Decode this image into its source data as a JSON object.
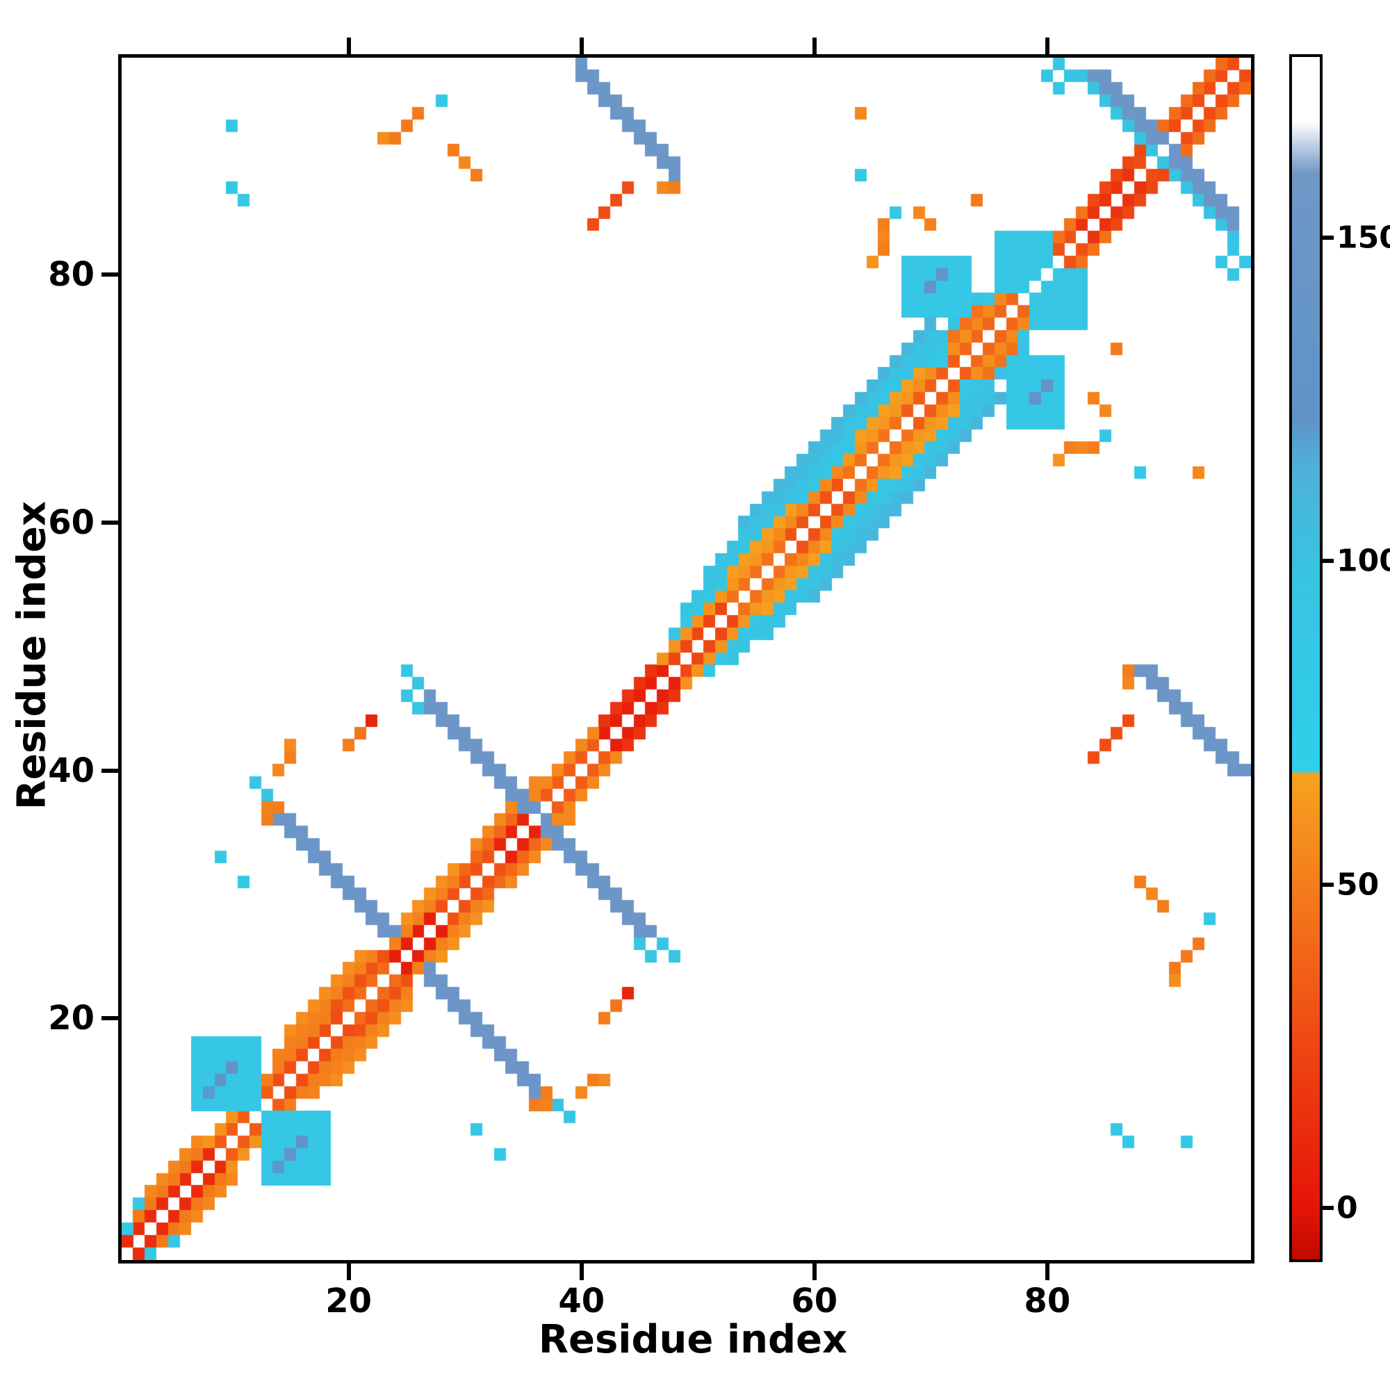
{
  "figure": {
    "background": "#ffffff"
  },
  "chart_data": {
    "type": "heatmap",
    "title": "",
    "xlabel": "Residue index",
    "ylabel": "Residue index",
    "n": 97,
    "axis_range": [
      1,
      97
    ],
    "x_ticks": [
      20,
      40,
      60,
      80
    ],
    "y_ticks": [
      20,
      40,
      60,
      80
    ],
    "grid": false,
    "symmetric": true,
    "background_cell": "#ffffff",
    "colorbar": {
      "ticks": [
        0,
        50,
        100,
        150
      ],
      "vmin": -8,
      "vmax": 178,
      "position": "right"
    },
    "colormap_stops": [
      [
        -8,
        "#c00b00"
      ],
      [
        0,
        "#e51408"
      ],
      [
        25,
        "#ef4713"
      ],
      [
        50,
        "#f47d1c"
      ],
      [
        67,
        "#f6a21f"
      ],
      [
        67.6,
        "#2ed0ea"
      ],
      [
        100,
        "#39c2e2"
      ],
      [
        115,
        "#4fb0d8"
      ],
      [
        122,
        "#5f93c8"
      ],
      [
        160,
        "#7097c6"
      ],
      [
        168,
        "#ffffff"
      ],
      [
        178,
        "#ffffff"
      ]
    ],
    "features": [
      {
        "t": "diag",
        "a": 1,
        "b": 9,
        "off": 1,
        "v": 12
      },
      {
        "t": "diag",
        "a": 9,
        "b": 14,
        "off": 1,
        "v": 35
      },
      {
        "t": "diag",
        "a": 14,
        "b": 20,
        "off": 1,
        "v": 28
      },
      {
        "t": "diag",
        "a": 20,
        "b": 24,
        "off": 1,
        "v": 42
      },
      {
        "t": "diag",
        "a": 24,
        "b": 28,
        "off": 1,
        "v": 5
      },
      {
        "t": "diag",
        "a": 28,
        "b": 33,
        "off": 1,
        "v": 30
      },
      {
        "t": "diag",
        "a": 33,
        "b": 37,
        "off": 1,
        "v": 8
      },
      {
        "t": "diag",
        "a": 37,
        "b": 42,
        "off": 1,
        "v": 35
      },
      {
        "t": "diag",
        "a": 42,
        "b": 48,
        "off": 1,
        "v": 6
      },
      {
        "t": "diag",
        "a": 48,
        "b": 53,
        "off": 1,
        "v": 25
      },
      {
        "t": "diag",
        "a": 53,
        "b": 58,
        "off": 1,
        "v": 45
      },
      {
        "t": "diag",
        "a": 58,
        "b": 63,
        "off": 1,
        "v": 30
      },
      {
        "t": "diag",
        "a": 63,
        "b": 68,
        "off": 1,
        "v": 45
      },
      {
        "t": "diag",
        "a": 68,
        "b": 73,
        "off": 1,
        "v": 35
      },
      {
        "t": "diag",
        "a": 73,
        "b": 78,
        "off": 1,
        "v": 40
      },
      {
        "t": "diag",
        "a": 78,
        "b": 83,
        "off": 1,
        "v": 30
      },
      {
        "t": "diag",
        "a": 83,
        "b": 88,
        "off": 1,
        "v": 15
      },
      {
        "t": "diag",
        "a": 88,
        "b": 96,
        "off": 1,
        "v": 28
      },
      {
        "t": "diag",
        "a": 1,
        "b": 8,
        "off": 2,
        "v": 48
      },
      {
        "t": "diag",
        "a": 8,
        "b": 13,
        "off": 2,
        "v": 60
      },
      {
        "t": "diag",
        "a": 13,
        "b": 19,
        "off": 2,
        "v": 50
      },
      {
        "t": "diag",
        "a": 19,
        "b": 24,
        "off": 2,
        "v": 30
      },
      {
        "t": "diag",
        "a": 24,
        "b": 30,
        "off": 2,
        "v": 52
      },
      {
        "t": "diag",
        "a": 30,
        "b": 36,
        "off": 2,
        "v": 40
      },
      {
        "t": "diag",
        "a": 36,
        "b": 42,
        "off": 2,
        "v": 55
      },
      {
        "t": "diag",
        "a": 42,
        "b": 47,
        "off": 2,
        "v": 15
      },
      {
        "t": "diag",
        "a": 47,
        "b": 52,
        "off": 2,
        "v": 60
      },
      {
        "t": "diag",
        "a": 52,
        "b": 57,
        "off": 2,
        "v": 62
      },
      {
        "t": "diag",
        "a": 57,
        "b": 63,
        "off": 2,
        "v": 55
      },
      {
        "t": "diag",
        "a": 63,
        "b": 69,
        "off": 2,
        "v": 62
      },
      {
        "t": "diag",
        "a": 69,
        "b": 74,
        "off": 2,
        "v": 58
      },
      {
        "t": "diag",
        "a": 74,
        "b": 79,
        "off": 2,
        "v": 55
      },
      {
        "t": "diag",
        "a": 79,
        "b": 84,
        "off": 2,
        "v": 45
      },
      {
        "t": "diag",
        "a": 84,
        "b": 89,
        "off": 2,
        "v": 25
      },
      {
        "t": "diag",
        "a": 89,
        "b": 95,
        "off": 2,
        "v": 42
      },
      {
        "t": "diag",
        "a": 3,
        "b": 7,
        "off": 3,
        "v": 55
      },
      {
        "t": "diag",
        "a": 14,
        "b": 22,
        "off": 3,
        "v": 52
      },
      {
        "t": "diag",
        "a": 24,
        "b": 29,
        "off": 3,
        "v": 60
      },
      {
        "t": "diag",
        "a": 31,
        "b": 36,
        "off": 3,
        "v": 55
      },
      {
        "t": "diag",
        "a": 48,
        "b": 53,
        "off": 3,
        "v": 90
      },
      {
        "t": "diag",
        "a": 53,
        "b": 59,
        "off": 3,
        "v": 65
      },
      {
        "t": "diag",
        "a": 59,
        "b": 64,
        "off": 3,
        "v": 90
      },
      {
        "t": "diag",
        "a": 64,
        "b": 70,
        "off": 3,
        "v": 65
      },
      {
        "t": "diag",
        "a": 70,
        "b": 75,
        "off": 3,
        "v": 92
      },
      {
        "t": "diag",
        "a": 15,
        "b": 21,
        "off": 4,
        "v": 58
      },
      {
        "t": "diag",
        "a": 49,
        "b": 56,
        "off": 4,
        "v": 95
      },
      {
        "t": "diag",
        "a": 56,
        "b": 62,
        "off": 4,
        "v": 100
      },
      {
        "t": "diag",
        "a": 62,
        "b": 68,
        "off": 4,
        "v": 96
      },
      {
        "t": "diag",
        "a": 68,
        "b": 74,
        "off": 4,
        "v": 100
      },
      {
        "t": "diag",
        "a": 51,
        "b": 57,
        "off": 5,
        "v": 100
      },
      {
        "t": "diag",
        "a": 57,
        "b": 63,
        "off": 5,
        "v": 105
      },
      {
        "t": "diag",
        "a": 63,
        "b": 70,
        "off": 5,
        "v": 100
      },
      {
        "t": "diag",
        "a": 54,
        "b": 62,
        "off": 6,
        "v": 108
      },
      {
        "t": "diag",
        "a": 62,
        "b": 70,
        "off": 6,
        "v": 110
      },
      {
        "t": "block",
        "x0": 7,
        "x1": 12,
        "y0": 13,
        "y1": 18,
        "v": 88
      },
      {
        "t": "block",
        "x0": 68,
        "x1": 73,
        "y0": 77,
        "y1": 81,
        "v": 88
      },
      {
        "t": "block",
        "x0": 76,
        "x1": 80,
        "y0": 79,
        "y1": 83,
        "v": 90
      },
      {
        "t": "anti",
        "i": 13,
        "j": 38,
        "len": 11,
        "v": 98
      },
      {
        "t": "anti",
        "i": 26,
        "j": 47,
        "len": 9,
        "v": 96
      },
      {
        "t": "anti",
        "i": 83,
        "j": 96,
        "len": 6,
        "v": 98
      },
      {
        "t": "anti",
        "i": 41,
        "j": 95,
        "len": 6,
        "v": 98
      },
      {
        "t": "anti",
        "i": 14,
        "j": 37,
        "len": 10,
        "v": 150
      },
      {
        "t": "anti",
        "i": 14,
        "j": 36,
        "len": 9,
        "v": 148
      },
      {
        "t": "anti",
        "i": 27,
        "j": 46,
        "len": 9,
        "v": 152
      },
      {
        "t": "anti",
        "i": 27,
        "j": 45,
        "len": 8,
        "v": 148
      },
      {
        "t": "anti",
        "i": 84,
        "j": 96,
        "len": 6,
        "v": 152
      },
      {
        "t": "anti",
        "i": 85,
        "j": 96,
        "len": 5,
        "v": 150
      },
      {
        "t": "anti",
        "i": 40,
        "j": 97,
        "len": 8,
        "v": 152
      },
      {
        "t": "anti",
        "i": 40,
        "j": 96,
        "len": 8,
        "v": 150
      },
      {
        "t": "dseg",
        "x": 24,
        "y": 91,
        "len": 3,
        "v": 48
      },
      {
        "t": "dseg",
        "x": 41,
        "y": 84,
        "len": 4,
        "v": 28
      },
      {
        "t": "dseg",
        "x": 13,
        "y": 36,
        "len": 2,
        "v": 50
      },
      {
        "t": "dseg",
        "x": 72,
        "y": 75,
        "len": 3,
        "v": 45
      },
      {
        "t": "dot",
        "x": 1,
        "y": 3,
        "v": 86
      },
      {
        "t": "dot",
        "x": 2,
        "y": 5,
        "v": 85
      },
      {
        "t": "dot",
        "x": 12,
        "y": 39,
        "v": 92
      },
      {
        "t": "dot",
        "x": 13,
        "y": 37,
        "v": 52
      },
      {
        "t": "dot",
        "x": 14,
        "y": 40,
        "v": 55
      },
      {
        "t": "dot",
        "x": 15,
        "y": 41,
        "v": 50
      },
      {
        "t": "dot",
        "x": 15,
        "y": 42,
        "v": 56
      },
      {
        "t": "dot",
        "x": 20,
        "y": 42,
        "v": 50
      },
      {
        "t": "dot",
        "x": 21,
        "y": 43,
        "v": 46
      },
      {
        "t": "dot",
        "x": 22,
        "y": 44,
        "v": 8
      },
      {
        "t": "dot",
        "x": 11,
        "y": 31,
        "v": 86
      },
      {
        "t": "dot",
        "x": 9,
        "y": 33,
        "v": 85
      },
      {
        "t": "dot",
        "x": 10,
        "y": 87,
        "v": 85
      },
      {
        "t": "dot",
        "x": 11,
        "y": 86,
        "v": 86
      },
      {
        "t": "dot",
        "x": 10,
        "y": 92,
        "v": 86
      },
      {
        "t": "dot",
        "x": 23,
        "y": 91,
        "v": 58
      },
      {
        "t": "dot",
        "x": 28,
        "y": 94,
        "v": 85
      },
      {
        "t": "dot",
        "x": 25,
        "y": 46,
        "v": 92
      },
      {
        "t": "dot",
        "x": 25,
        "y": 48,
        "v": 90
      },
      {
        "t": "dot",
        "x": 26,
        "y": 45,
        "v": 90
      },
      {
        "t": "dot",
        "x": 64,
        "y": 88,
        "v": 85
      },
      {
        "t": "dot",
        "x": 64,
        "y": 93,
        "v": 55
      },
      {
        "t": "dot",
        "x": 65,
        "y": 81,
        "v": 60
      },
      {
        "t": "dot",
        "x": 66,
        "y": 82,
        "v": 50
      },
      {
        "t": "dot",
        "x": 66,
        "y": 83,
        "v": 55
      },
      {
        "t": "dot",
        "x": 66,
        "y": 84,
        "v": 50
      },
      {
        "t": "dot",
        "x": 67,
        "y": 85,
        "v": 86
      },
      {
        "t": "dot",
        "x": 70,
        "y": 84,
        "v": 52
      },
      {
        "t": "dot",
        "x": 74,
        "y": 86,
        "v": 48
      },
      {
        "t": "dot",
        "x": 69,
        "y": 85,
        "v": 55
      },
      {
        "t": "dot",
        "x": 71,
        "y": 73,
        "v": 86
      },
      {
        "t": "dot",
        "x": 80,
        "y": 96,
        "v": 90
      },
      {
        "t": "dot",
        "x": 81,
        "y": 95,
        "v": 88
      },
      {
        "t": "dot",
        "x": 81,
        "y": 97,
        "v": 90
      },
      {
        "t": "dot",
        "x": 82,
        "y": 96,
        "v": 92
      },
      {
        "t": "dot",
        "x": 47,
        "y": 87,
        "v": 55
      },
      {
        "t": "dot",
        "x": 48,
        "y": 87,
        "v": 50
      },
      {
        "t": "dot",
        "x": 29,
        "y": 90,
        "v": 50
      },
      {
        "t": "dot",
        "x": 30,
        "y": 89,
        "v": 55
      },
      {
        "t": "dot",
        "x": 31,
        "y": 88,
        "v": 50
      },
      {
        "t": "dot",
        "x": 8,
        "y": 14,
        "v": 120
      },
      {
        "t": "dot",
        "x": 9,
        "y": 15,
        "v": 128
      },
      {
        "t": "dot",
        "x": 10,
        "y": 16,
        "v": 126
      },
      {
        "t": "dot",
        "x": 70,
        "y": 79,
        "v": 130
      },
      {
        "t": "dot",
        "x": 71,
        "y": 80,
        "v": 132
      }
    ]
  }
}
